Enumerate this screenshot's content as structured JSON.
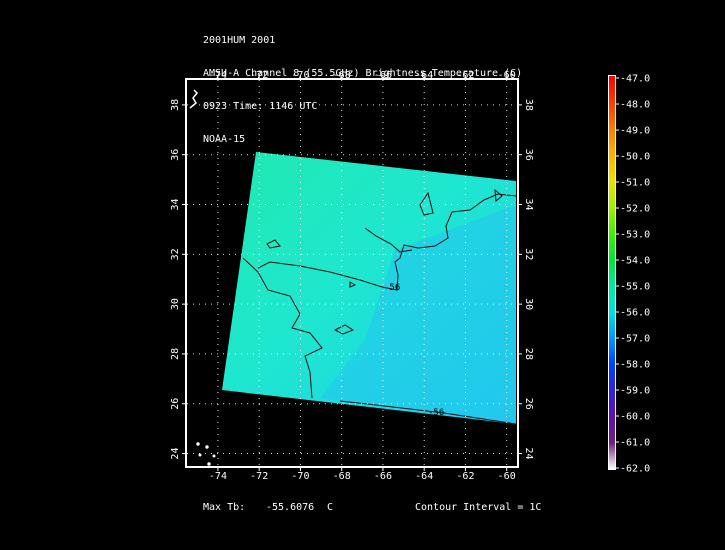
{
  "header": {
    "line1": "2001HUM 2001",
    "line2": "AMSU-A Channel 8 (55.5GHz) Brightness Temperature (C)",
    "line3": "0923 Time: 1146 UTC",
    "line4": "NOAA-15"
  },
  "map": {
    "lon_range": [
      -75.5,
      -59.5
    ],
    "lat_range": [
      23.5,
      39
    ],
    "lon_ticks": [
      -74,
      -72,
      -70,
      -68,
      -66,
      -64,
      -62,
      -60
    ],
    "lat_ticks": [
      24,
      26,
      28,
      30,
      32,
      34,
      36,
      38
    ],
    "lon_tick_labels": [
      "-74",
      "-72",
      "-70",
      "-68",
      "-66",
      "-64",
      "-62",
      "-60"
    ],
    "lat_tick_labels": [
      "24",
      "26",
      "28",
      "30",
      "32",
      "34",
      "36",
      "38"
    ],
    "grid": "dotted",
    "contour_labels": [
      "-56",
      "-56"
    ],
    "swath_colors": {
      "warm": "#21e8b0",
      "mid": "#1ee7d0",
      "cool": "#22ccee"
    }
  },
  "colorbar": {
    "labels": [
      "-47.0",
      "-48.0",
      "-49.0",
      "-50.0",
      "-51.0",
      "-52.0",
      "-53.0",
      "-54.0",
      "-55.0",
      "-56.0",
      "-57.0",
      "-58.0",
      "-59.0",
      "-60.0",
      "-61.0",
      "-62.0"
    ],
    "colors": [
      "#ff0000",
      "#ff3a00",
      "#ff7a00",
      "#ffb000",
      "#f0e000",
      "#a0f000",
      "#40f000",
      "#00e830",
      "#00e8a0",
      "#00e0e0",
      "#0098ff",
      "#0040ff",
      "#3020e0",
      "#6010b0",
      "#702080",
      "#ffffff"
    ]
  },
  "footer": {
    "max_label": "Max Tb:",
    "max_value": "-55.6076",
    "unit": "C",
    "contour": "Contour Interval = 1C"
  }
}
